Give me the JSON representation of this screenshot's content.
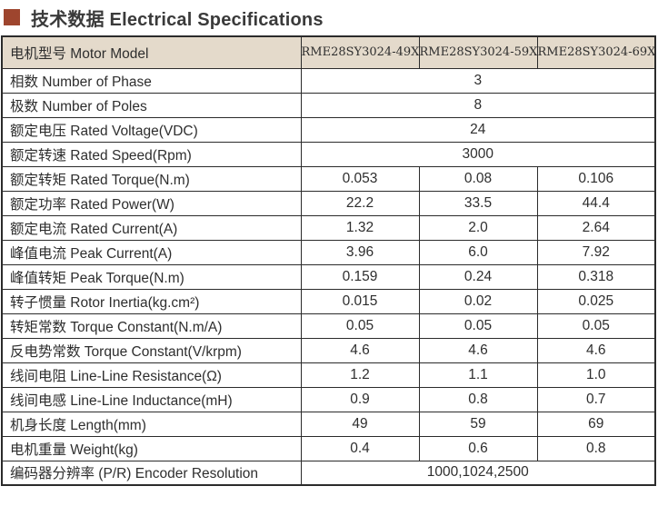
{
  "section": {
    "title": "技术数据 Electrical Specifications"
  },
  "colors": {
    "bullet": "#9e452e",
    "header_bg": "#e4dacb",
    "border": "#2b2b2b",
    "text": "#2e2e2e",
    "title": "#3a3a3a"
  },
  "table": {
    "header_label": "电机型号 Motor Model",
    "models": [
      "RME28SY3024-49X",
      "RME28SY3024-59X",
      "RME28SY3024-69X"
    ],
    "rows": [
      {
        "label": "相数 Number of Phase",
        "value": "3"
      },
      {
        "label": "极数 Number of Poles",
        "value": "8"
      },
      {
        "label": "额定电压 Rated Voltage(VDC)",
        "value": "24"
      },
      {
        "label": "额定转速 Rated Speed(Rpm)",
        "value": "3000"
      },
      {
        "label": "额定转矩 Rated Torque(N.m)",
        "values": [
          "0.053",
          "0.08",
          "0.106"
        ]
      },
      {
        "label": "额定功率 Rated Power(W)",
        "values": [
          "22.2",
          "33.5",
          "44.4"
        ]
      },
      {
        "label": "额定电流 Rated Current(A)",
        "values": [
          "1.32",
          "2.0",
          "2.64"
        ]
      },
      {
        "label": "峰值电流 Peak Current(A)",
        "values": [
          "3.96",
          "6.0",
          "7.92"
        ]
      },
      {
        "label": "峰值转矩 Peak Torque(N.m)",
        "values": [
          "0.159",
          "0.24",
          "0.318"
        ]
      },
      {
        "label": "转子惯量 Rotor Inertia(kg.cm²)",
        "values": [
          "0.015",
          "0.02",
          "0.025"
        ]
      },
      {
        "label": "转矩常数 Torque Constant(N.m/A)",
        "values": [
          "0.05",
          "0.05",
          "0.05"
        ]
      },
      {
        "label": "反电势常数 Torque Constant(V/krpm)",
        "values": [
          "4.6",
          "4.6",
          "4.6"
        ]
      },
      {
        "label": "线间电阻 Line-Line Resistance(Ω)",
        "values": [
          "1.2",
          "1.1",
          "1.0"
        ]
      },
      {
        "label": "线间电感 Line-Line Inductance(mH)",
        "values": [
          "0.9",
          "0.8",
          "0.7"
        ]
      },
      {
        "label": "机身长度 Length(mm)",
        "values": [
          "49",
          "59",
          "69"
        ]
      },
      {
        "label": "电机重量 Weight(kg)",
        "values": [
          "0.4",
          "0.6",
          "0.8"
        ]
      },
      {
        "label": "编码器分辨率 (P/R) Encoder Resolution",
        "value": "1000,1024,2500"
      }
    ]
  }
}
